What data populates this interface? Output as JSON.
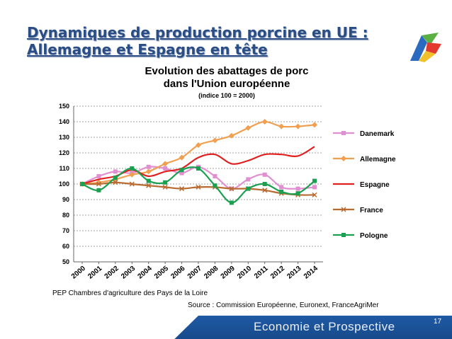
{
  "slide": {
    "title_line1": "Dynamiques de production porcine en UE :",
    "title_line2": "Allemagne et Espagne en tête",
    "note": "PEP Chambres d'agriculture des Pays de la Loire",
    "source": "Source : Commission Européenne, Euronext, FranceAgriMer",
    "footer": "Economie et Prospective",
    "page_number": "17"
  },
  "chart_data": {
    "type": "line",
    "title": "Evolution des abattages de porc dans l'Union européenne",
    "title_line1": "Evolution des abattages de porc",
    "title_line2": "dans l'Union européenne",
    "subtitle": "(indice 100 = 2000)",
    "xlabel": "",
    "ylabel": "",
    "ylim": [
      50,
      150
    ],
    "yticks": [
      50,
      60,
      70,
      80,
      90,
      100,
      110,
      120,
      130,
      140,
      150
    ],
    "grid": true,
    "legend_position": "right",
    "categories": [
      "2000",
      "2001",
      "2002",
      "2003",
      "2004",
      "2005",
      "2006",
      "2007",
      "2008",
      "2009",
      "2010",
      "2011",
      "2012",
      "2013",
      "2014"
    ],
    "series": [
      {
        "name": "Danemark",
        "color": "#e08fd0",
        "marker": "square",
        "values": [
          100,
          105,
          108,
          107,
          111,
          110,
          107,
          111,
          105,
          97,
          103,
          106,
          98,
          97,
          98
        ]
      },
      {
        "name": "Allemagne",
        "color": "#f0a050",
        "marker": "diamond",
        "values": [
          100,
          101,
          103,
          106,
          108,
          113,
          117,
          125,
          128,
          131,
          136,
          140,
          137,
          137,
          138
        ]
      },
      {
        "name": "Espagne",
        "color": "#e02020",
        "marker": "none",
        "values": [
          100,
          103,
          105,
          109,
          105,
          108,
          110,
          117,
          119,
          113,
          115,
          119,
          119,
          118,
          124
        ]
      },
      {
        "name": "France",
        "color": "#b86a30",
        "marker": "cross",
        "values": [
          100,
          100,
          101,
          100,
          99,
          98,
          97,
          98,
          98,
          97,
          97,
          96,
          94,
          93,
          93
        ]
      },
      {
        "name": "Pologne",
        "color": "#1aa050",
        "marker": "square",
        "values": [
          100,
          96,
          104,
          110,
          102,
          101,
          109,
          110,
          99,
          88,
          97,
          100,
          95,
          94,
          102
        ]
      }
    ]
  }
}
